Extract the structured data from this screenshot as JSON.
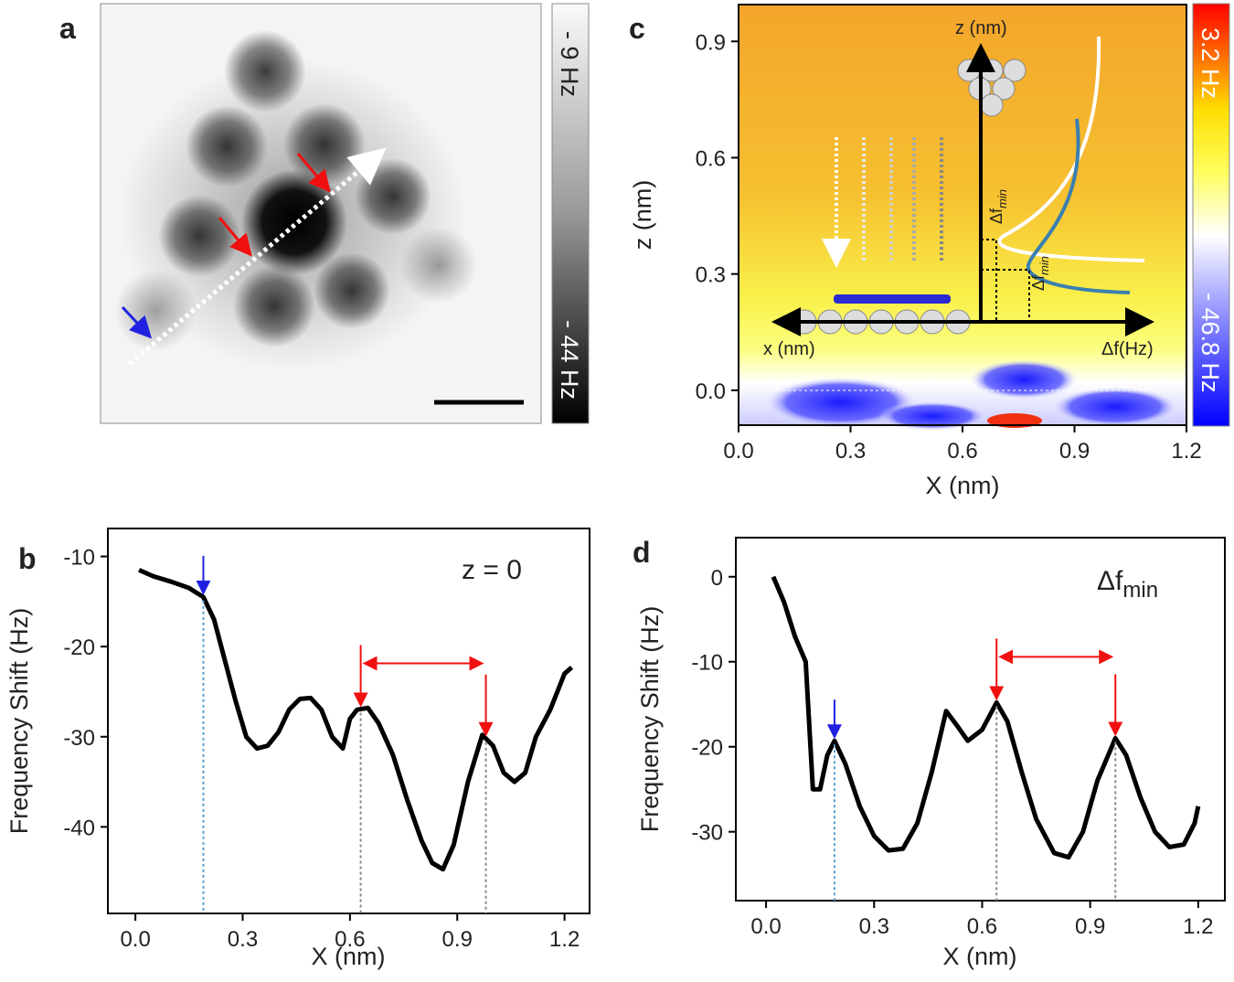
{
  "chart_data": [
    {
      "type": "image",
      "label": "a",
      "colorbar_labels": [
        "- 9 Hz",
        "- 44 Hz"
      ]
    },
    {
      "type": "map",
      "label": "c",
      "xlabel": "X (nm)",
      "ylabel": "z (nm)",
      "xlim": [
        0,
        1.2
      ],
      "xticks": [
        {
          "value": 0,
          "label": "0.0"
        },
        0.3,
        0.6,
        0.9,
        1.2
      ],
      "ylim": [
        -0.09,
        0.995
      ],
      "yticks": [
        {
          "value": 0,
          "label": "0.0"
        },
        0.3,
        0.6,
        0.9
      ],
      "colorbar_labels": [
        "3.2 Hz",
        "- 46.8 Hz"
      ],
      "annotations": [
        "z (nm)",
        "x (nm)",
        "Δf(Hz)"
      ],
      "delta_label": "Δf",
      "delta_sub": "min"
    },
    {
      "type": "line",
      "label": "b",
      "annotation": "z = 0",
      "xlabel": "X (nm)",
      "ylabel": "Frequency Shift (Hz)",
      "xlim": [
        -0.077,
        1.27
      ],
      "xticks": [
        {
          "value": 0,
          "label": "0.0"
        },
        0.3,
        0.6,
        0.9,
        1.2
      ],
      "ylim": [
        -49.6,
        -6.9
      ],
      "yticks": [
        -10,
        -20,
        -30,
        -40
      ],
      "color": "#000000",
      "markers": [
        0.19,
        0.63,
        0.98
      ],
      "x": [
        0.01,
        0.05,
        0.1,
        0.15,
        0.19,
        0.22,
        0.25,
        0.28,
        0.31,
        0.34,
        0.37,
        0.4,
        0.43,
        0.46,
        0.49,
        0.52,
        0.55,
        0.58,
        0.6,
        0.62,
        0.65,
        0.68,
        0.72,
        0.76,
        0.8,
        0.83,
        0.86,
        0.89,
        0.93,
        0.97,
        1.0,
        1.03,
        1.06,
        1.09,
        1.12,
        1.16,
        1.2,
        1.22
      ],
      "values": [
        -11.5,
        -12.2,
        -12.8,
        -13.5,
        -14.5,
        -17,
        -21.5,
        -26,
        -30,
        -31.3,
        -31,
        -29.5,
        -27,
        -25.8,
        -25.7,
        -27,
        -30,
        -31.3,
        -28,
        -27,
        -26.8,
        -28.5,
        -32,
        -37,
        -41.5,
        -44,
        -44.7,
        -42,
        -35,
        -29.8,
        -31,
        -34,
        -35,
        -34,
        -30,
        -27,
        -23,
        -22.3
      ]
    },
    {
      "type": "line",
      "label": "d",
      "annotation": "Δf",
      "annotation_sub": "min",
      "xlabel": "X (nm)",
      "ylabel": "Frequency Shift (Hz)",
      "xlim": [
        -0.084,
        1.274
      ],
      "xticks": [
        {
          "value": 0,
          "label": "0.0"
        },
        0.3,
        0.6,
        0.9,
        1.2
      ],
      "ylim": [
        -38.1,
        4.6
      ],
      "yticks": [
        0,
        -10,
        -20,
        -30
      ],
      "color": "#000000",
      "markers": [
        0.19,
        0.64,
        0.97
      ],
      "x": [
        0.02,
        0.05,
        0.08,
        0.11,
        0.13,
        0.15,
        0.17,
        0.19,
        0.22,
        0.26,
        0.3,
        0.34,
        0.38,
        0.42,
        0.46,
        0.5,
        0.53,
        0.56,
        0.6,
        0.64,
        0.67,
        0.71,
        0.75,
        0.8,
        0.84,
        0.88,
        0.92,
        0.97,
        1.0,
        1.04,
        1.08,
        1.12,
        1.16,
        1.19,
        1.2
      ],
      "values": [
        0,
        -3,
        -7,
        -10,
        -25,
        -25,
        -21,
        -19.3,
        -22,
        -27,
        -30.5,
        -32.2,
        -32,
        -29,
        -23,
        -15.8,
        -17.5,
        -19.3,
        -18,
        -14.8,
        -17,
        -23,
        -28.5,
        -32.5,
        -33,
        -30,
        -24,
        -19,
        -21,
        -26,
        -30,
        -31.8,
        -31.5,
        -29,
        -27
      ]
    }
  ]
}
